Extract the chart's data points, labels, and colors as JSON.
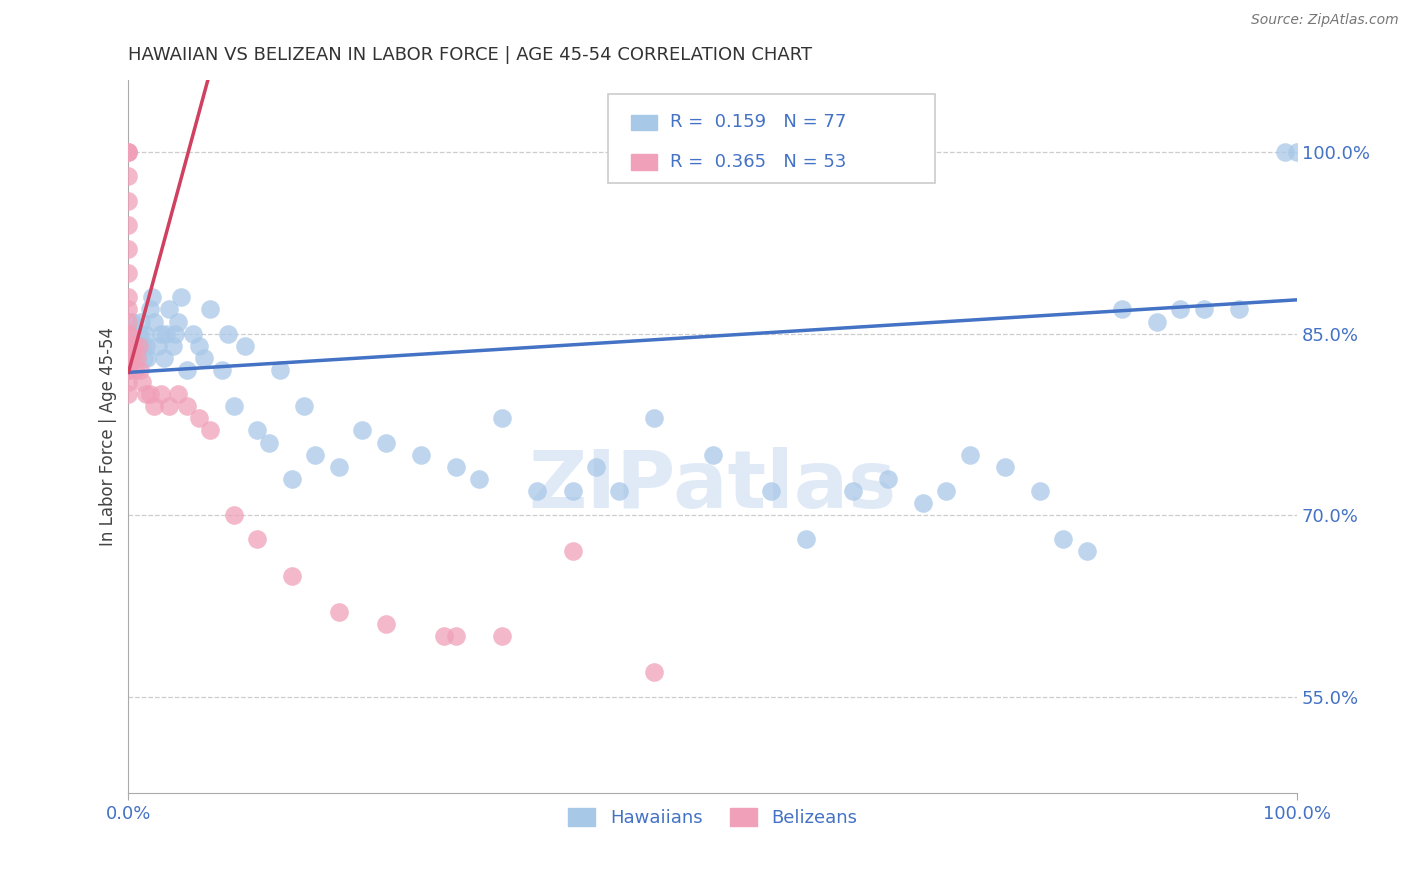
{
  "title": "HAWAIIAN VS BELIZEAN IN LABOR FORCE | AGE 45-54 CORRELATION CHART",
  "source": "Source: ZipAtlas.com",
  "ylabel": "In Labor Force | Age 45-54",
  "xlim": [
    0.0,
    1.0
  ],
  "ylim": [
    0.47,
    1.06
  ],
  "yticks": [
    0.55,
    0.7,
    0.85,
    1.0
  ],
  "ytick_labels": [
    "55.0%",
    "70.0%",
    "85.0%",
    "100.0%"
  ],
  "xtick_labels": [
    "0.0%",
    "100.0%"
  ],
  "hawaiian_R": 0.159,
  "hawaiian_N": 77,
  "belizean_R": 0.365,
  "belizean_N": 53,
  "hawaiian_color": "#a8c8e8",
  "belizean_color": "#f0a0b8",
  "hawaiian_line_color": "#4472c4",
  "belizean_line_color": "#d04060",
  "tick_color": "#4472c4",
  "watermark_color": "#c8daf0",
  "hawaiian_line_x0": 0.0,
  "hawaiian_line_x1": 1.0,
  "hawaiian_line_y0": 0.818,
  "hawaiian_line_y1": 0.878,
  "belizean_line_x0": 0.0,
  "belizean_line_x1": 0.068,
  "belizean_line_y0": 0.818,
  "belizean_line_y1": 1.06,
  "hawaiian_x": [
    0.0,
    0.0,
    0.0,
    0.0,
    0.003,
    0.003,
    0.005,
    0.005,
    0.007,
    0.007,
    0.008,
    0.009,
    0.01,
    0.011,
    0.012,
    0.013,
    0.014,
    0.015,
    0.016,
    0.018,
    0.02,
    0.022,
    0.025,
    0.028,
    0.03,
    0.032,
    0.035,
    0.038,
    0.04,
    0.042,
    0.045,
    0.05,
    0.055,
    0.06,
    0.065,
    0.07,
    0.08,
    0.085,
    0.09,
    0.1,
    0.11,
    0.12,
    0.13,
    0.14,
    0.15,
    0.16,
    0.18,
    0.2,
    0.22,
    0.25,
    0.28,
    0.3,
    0.32,
    0.35,
    0.38,
    0.4,
    0.42,
    0.45,
    0.5,
    0.55,
    0.58,
    0.62,
    0.65,
    0.68,
    0.7,
    0.72,
    0.75,
    0.78,
    0.8,
    0.82,
    0.85,
    0.88,
    0.9,
    0.92,
    0.95,
    0.99,
    1.0
  ],
  "hawaiian_y": [
    0.84,
    0.83,
    0.85,
    0.82,
    0.86,
    0.85,
    0.85,
    0.84,
    0.84,
    0.83,
    0.85,
    0.84,
    0.85,
    0.86,
    0.84,
    0.83,
    0.85,
    0.84,
    0.83,
    0.87,
    0.88,
    0.86,
    0.84,
    0.85,
    0.83,
    0.85,
    0.87,
    0.84,
    0.85,
    0.86,
    0.88,
    0.82,
    0.85,
    0.84,
    0.83,
    0.87,
    0.82,
    0.85,
    0.79,
    0.84,
    0.77,
    0.76,
    0.82,
    0.73,
    0.79,
    0.75,
    0.74,
    0.77,
    0.76,
    0.75,
    0.74,
    0.73,
    0.78,
    0.72,
    0.72,
    0.74,
    0.72,
    0.78,
    0.75,
    0.72,
    0.68,
    0.72,
    0.73,
    0.71,
    0.72,
    0.75,
    0.74,
    0.72,
    0.68,
    0.67,
    0.87,
    0.86,
    0.87,
    0.87,
    0.87,
    1.0,
    1.0
  ],
  "belizean_x": [
    0.0,
    0.0,
    0.0,
    0.0,
    0.0,
    0.0,
    0.0,
    0.0,
    0.0,
    0.0,
    0.0,
    0.0,
    0.0,
    0.0,
    0.0,
    0.0,
    0.0,
    0.0,
    0.0,
    0.0,
    0.0,
    0.0,
    0.0,
    0.001,
    0.001,
    0.002,
    0.003,
    0.004,
    0.005,
    0.006,
    0.007,
    0.009,
    0.01,
    0.012,
    0.015,
    0.018,
    0.022,
    0.028,
    0.035,
    0.042,
    0.05,
    0.06,
    0.07,
    0.09,
    0.11,
    0.14,
    0.18,
    0.22,
    0.27,
    0.32,
    0.38,
    0.45,
    0.28
  ],
  "belizean_y": [
    1.0,
    1.0,
    1.0,
    0.98,
    0.96,
    0.94,
    0.92,
    0.9,
    0.88,
    0.87,
    0.86,
    0.85,
    0.85,
    0.84,
    0.84,
    0.83,
    0.83,
    0.83,
    0.82,
    0.82,
    0.82,
    0.81,
    0.8,
    0.84,
    0.83,
    0.84,
    0.84,
    0.83,
    0.84,
    0.82,
    0.83,
    0.84,
    0.82,
    0.81,
    0.8,
    0.8,
    0.79,
    0.8,
    0.79,
    0.8,
    0.79,
    0.78,
    0.77,
    0.7,
    0.68,
    0.65,
    0.62,
    0.61,
    0.6,
    0.6,
    0.67,
    0.57,
    0.6
  ]
}
